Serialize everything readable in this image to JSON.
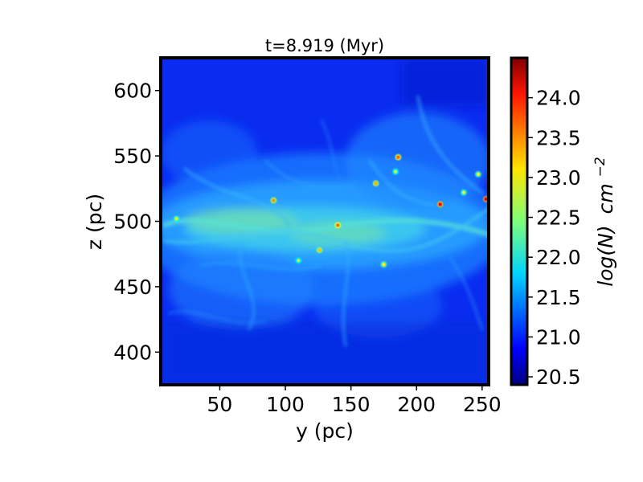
{
  "chart_data": {
    "type": "heatmap",
    "title": "t=8.919 (Myr)",
    "xlabel": "y (pc)",
    "ylabel": "z (pc)",
    "xlim": [
      5,
      255
    ],
    "ylim": [
      375,
      625
    ],
    "x_ticks": [
      50,
      100,
      150,
      200,
      250
    ],
    "y_ticks": [
      400,
      450,
      500,
      550,
      600
    ],
    "colorbar": {
      "label": "log(N) cm^-2",
      "label_main": "log(N)",
      "label_unit": "cm",
      "label_exp": "−2",
      "range": [
        20.4,
        24.5
      ],
      "ticks": [
        "20.5",
        "21.0",
        "21.5",
        "22.0",
        "22.5",
        "23.0",
        "23.5",
        "24.0"
      ],
      "colormap": "jet"
    },
    "field_description": "column density map of a turbulent gas layer; dense filamentary band concentrated near z≈500 pc, with compact peaks above 23.5",
    "dense_clumps": [
      {
        "y": 186,
        "z": 549,
        "value": 23.6
      },
      {
        "y": 169,
        "z": 529,
        "value": 23.3
      },
      {
        "y": 91,
        "z": 516,
        "value": 23.4
      },
      {
        "y": 218,
        "z": 513,
        "value": 24.0
      },
      {
        "y": 253,
        "z": 517,
        "value": 24.1
      },
      {
        "y": 140,
        "z": 497,
        "value": 23.6
      },
      {
        "y": 126,
        "z": 478,
        "value": 23.2
      },
      {
        "y": 175,
        "z": 467,
        "value": 23.0
      },
      {
        "y": 17,
        "z": 502,
        "value": 22.8
      },
      {
        "y": 247,
        "z": 536,
        "value": 22.9
      },
      {
        "y": 236,
        "z": 522,
        "value": 22.8
      },
      {
        "y": 110,
        "z": 470,
        "value": 22.6
      },
      {
        "y": 184,
        "z": 538,
        "value": 22.7
      }
    ]
  }
}
